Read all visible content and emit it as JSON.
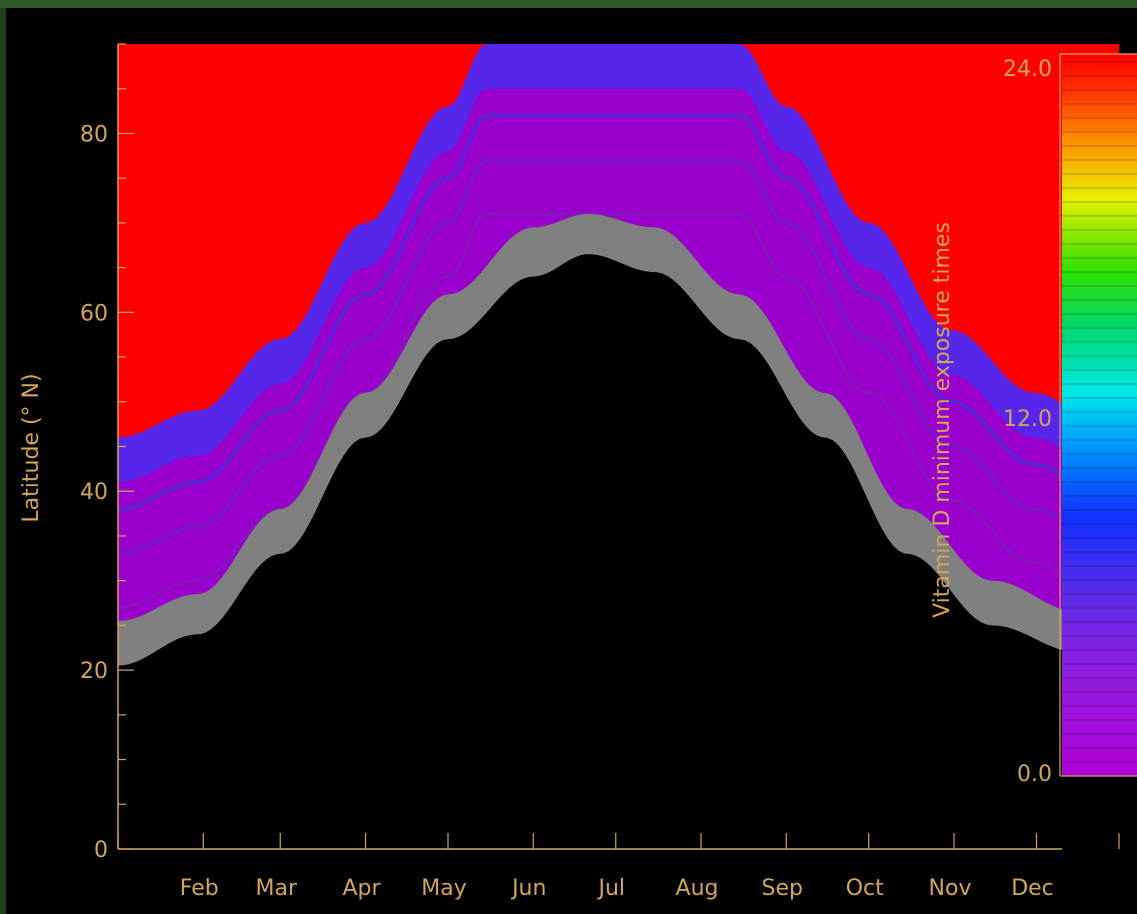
{
  "chart_data": {
    "type": "heatmap",
    "title": "",
    "xlabel": "",
    "ylabel": "Latitude (° N)",
    "x_tick_labels": [
      "Feb",
      "Mar",
      "Apr",
      "May",
      "Jun",
      "Jul",
      "Aug",
      "Sep",
      "Oct",
      "Nov",
      "Dec"
    ],
    "y_tick_labels": [
      "0",
      "20",
      "40",
      "60",
      "80"
    ],
    "y_ticks": [
      0,
      20,
      40,
      60,
      80
    ],
    "xlim": [
      1,
      365
    ],
    "ylim": [
      0,
      90
    ],
    "colorbar": {
      "label": "Vitamin D minimum exposure times",
      "tick_labels": [
        "0.0",
        "12.0",
        "24.0"
      ],
      "range": [
        0,
        24
      ]
    },
    "region_colors": {
      "no_synthesis": "#ff0000",
      "short_exposure": "#9900cc",
      "transition_band": "#808080",
      "below_band": "#000000",
      "axis": "#d2a55a"
    },
    "boundaries": {
      "red_region_lower_lat": [
        [
          1,
          46
        ],
        [
          30,
          49
        ],
        [
          60,
          57
        ],
        [
          91,
          70
        ],
        [
          121,
          83
        ],
        [
          135,
          90
        ],
        [
          227,
          90
        ],
        [
          244,
          83
        ],
        [
          274,
          70
        ],
        [
          304,
          58
        ],
        [
          334,
          51
        ],
        [
          365,
          46
        ]
      ],
      "gray_band_upper_lat": [
        [
          1,
          25.5
        ],
        [
          30,
          28.5
        ],
        [
          60,
          38
        ],
        [
          91,
          51
        ],
        [
          121,
          62
        ],
        [
          152,
          69.5
        ],
        [
          172,
          71
        ],
        [
          196,
          69.5
        ],
        [
          227,
          62
        ],
        [
          258,
          51
        ],
        [
          288,
          38
        ],
        [
          319,
          30
        ],
        [
          350,
          26.5
        ],
        [
          365,
          25.5
        ]
      ],
      "gray_band_lower_lat": [
        [
          1,
          20.5
        ],
        [
          30,
          24
        ],
        [
          60,
          33
        ],
        [
          91,
          46
        ],
        [
          121,
          57
        ],
        [
          152,
          64
        ],
        [
          172,
          66.5
        ],
        [
          196,
          64.5
        ],
        [
          227,
          57
        ],
        [
          258,
          46
        ],
        [
          288,
          33
        ],
        [
          319,
          25
        ],
        [
          350,
          22
        ],
        [
          365,
          20.5
        ]
      ]
    }
  }
}
